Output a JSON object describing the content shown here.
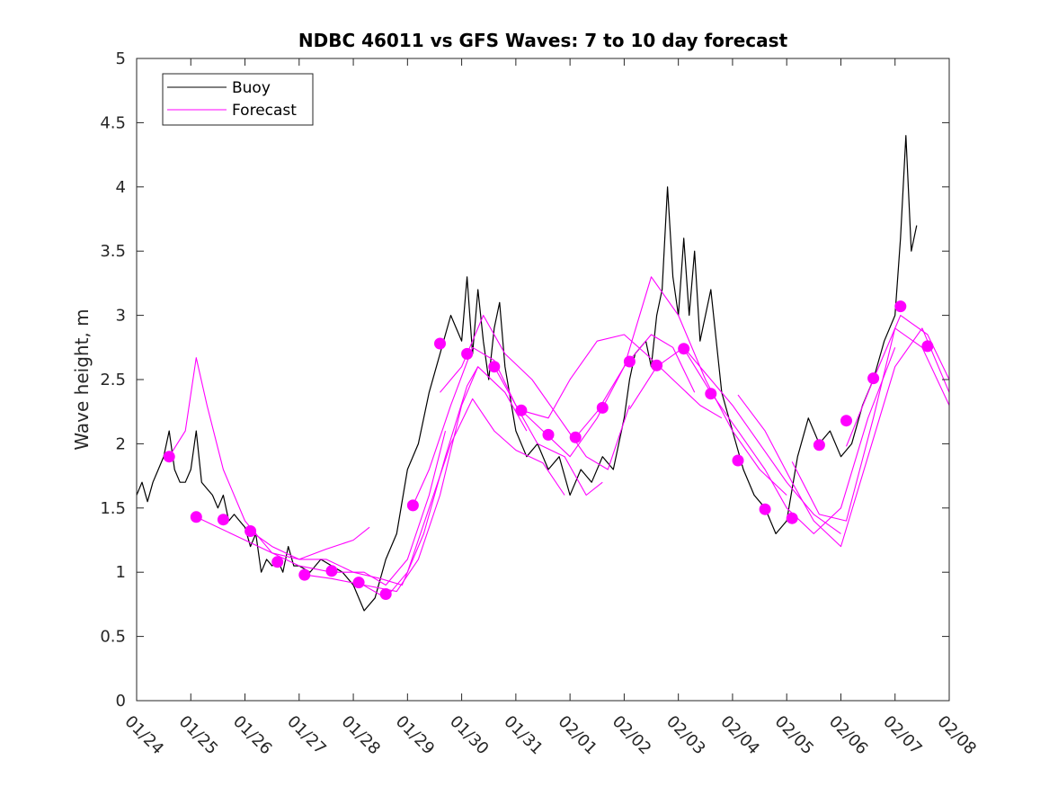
{
  "chart_data": {
    "type": "line",
    "title": "NDBC 46011 vs GFS Waves: 7 to 10 day forecast",
    "xlabel": "",
    "ylabel": "Wave height, m",
    "xlim": [
      0,
      15
    ],
    "ylim": [
      0,
      5
    ],
    "x_tick_values": [
      0,
      1,
      2,
      3,
      4,
      5,
      6,
      7,
      8,
      9,
      10,
      11,
      12,
      13,
      14,
      15
    ],
    "x_tick_labels": [
      "01/24",
      "01/25",
      "01/26",
      "01/27",
      "01/28",
      "01/29",
      "01/30",
      "01/31",
      "02/01",
      "02/02",
      "02/03",
      "02/04",
      "02/05",
      "02/06",
      "02/07",
      "02/08"
    ],
    "y_tick_values": [
      0,
      0.5,
      1,
      1.5,
      2,
      2.5,
      3,
      3.5,
      4,
      4.5,
      5
    ],
    "y_tick_labels": [
      "0",
      "0.5",
      "1",
      "1.5",
      "2",
      "2.5",
      "3",
      "3.5",
      "4",
      "4.5",
      "5"
    ],
    "legend": {
      "position": "top-left",
      "entries": [
        {
          "label": "Buoy",
          "color": "#000000"
        },
        {
          "label": "Forecast",
          "color": "#ff00ff"
        }
      ]
    },
    "colors": {
      "buoy": "#000000",
      "forecast": "#ff00ff"
    },
    "series": [
      {
        "name": "Buoy",
        "x": [
          0,
          0.1,
          0.2,
          0.3,
          0.4,
          0.5,
          0.6,
          0.7,
          0.8,
          0.9,
          1.0,
          1.1,
          1.2,
          1.3,
          1.4,
          1.5,
          1.6,
          1.7,
          1.8,
          1.9,
          2.0,
          2.1,
          2.2,
          2.3,
          2.4,
          2.5,
          2.6,
          2.7,
          2.8,
          2.9,
          3.0,
          3.2,
          3.4,
          3.6,
          3.8,
          4.0,
          4.2,
          4.4,
          4.6,
          4.8,
          5.0,
          5.2,
          5.4,
          5.6,
          5.8,
          6.0,
          6.1,
          6.2,
          6.3,
          6.4,
          6.5,
          6.6,
          6.7,
          6.8,
          7.0,
          7.2,
          7.4,
          7.6,
          7.8,
          8.0,
          8.2,
          8.4,
          8.6,
          8.8,
          9.0,
          9.1,
          9.2,
          9.4,
          9.5,
          9.6,
          9.7,
          9.8,
          9.9,
          10.0,
          10.1,
          10.2,
          10.3,
          10.4,
          10.6,
          10.8,
          11.0,
          11.2,
          11.4,
          11.6,
          11.8,
          12.0,
          12.2,
          12.4,
          12.6,
          12.8,
          13.0,
          13.2,
          13.4,
          13.6,
          13.8,
          14.0,
          14.1,
          14.2,
          14.3,
          14.4
        ],
        "values": [
          1.6,
          1.7,
          1.55,
          1.7,
          1.8,
          1.9,
          2.1,
          1.8,
          1.7,
          1.7,
          1.8,
          2.1,
          1.7,
          1.65,
          1.6,
          1.5,
          1.6,
          1.4,
          1.45,
          1.4,
          1.35,
          1.2,
          1.3,
          1.0,
          1.1,
          1.05,
          1.1,
          1.0,
          1.2,
          1.05,
          1.05,
          1.0,
          1.1,
          1.05,
          1.0,
          0.9,
          0.7,
          0.8,
          1.1,
          1.3,
          1.8,
          2.0,
          2.4,
          2.7,
          3.0,
          2.8,
          3.3,
          2.7,
          3.2,
          2.8,
          2.5,
          2.9,
          3.1,
          2.6,
          2.1,
          1.9,
          2.0,
          1.8,
          1.9,
          1.6,
          1.8,
          1.7,
          1.9,
          1.8,
          2.2,
          2.5,
          2.7,
          2.8,
          2.6,
          3.0,
          3.2,
          4.0,
          3.3,
          3.0,
          3.6,
          3.0,
          3.5,
          2.8,
          3.2,
          2.4,
          2.1,
          1.8,
          1.6,
          1.5,
          1.3,
          1.4,
          1.9,
          2.2,
          2.0,
          2.1,
          1.9,
          2.0,
          2.3,
          2.5,
          2.8,
          3.0,
          3.6,
          4.4,
          3.5,
          3.7
        ]
      },
      {
        "name": "Forecast",
        "x": [
          0.6,
          0.9,
          1.1,
          1.3,
          1.6,
          2.0,
          2.5,
          3.0,
          3.5,
          4.0,
          4.3
        ],
        "values": [
          1.9,
          2.1,
          2.67,
          2.3,
          1.8,
          1.4,
          1.15,
          1.1,
          1.18,
          1.25,
          1.35
        ]
      },
      {
        "name": "Forecast",
        "x": [
          1.1,
          1.5,
          2.0,
          2.5,
          3.0,
          3.6,
          4.2,
          4.6,
          5.0,
          5.4,
          5.7
        ],
        "values": [
          1.43,
          1.35,
          1.25,
          1.15,
          1.05,
          1.0,
          1.0,
          0.9,
          1.1,
          1.6,
          2.1
        ]
      },
      {
        "name": "Forecast",
        "x": [
          2.1,
          2.5,
          3.0,
          3.5,
          4.0,
          4.5,
          4.9,
          5.3,
          5.7,
          6.1,
          6.3
        ],
        "values": [
          1.32,
          1.2,
          1.1,
          1.1,
          1.0,
          0.95,
          0.9,
          1.3,
          1.9,
          2.45,
          2.6
        ]
      },
      {
        "name": "Forecast",
        "x": [
          3.1,
          3.6,
          4.2,
          4.8,
          5.2,
          5.6,
          6.0,
          6.3,
          6.8,
          7.2
        ],
        "values": [
          0.98,
          0.95,
          0.9,
          0.85,
          1.1,
          1.6,
          2.3,
          2.6,
          2.4,
          2.1
        ]
      },
      {
        "name": "Forecast",
        "x": [
          4.1,
          4.6,
          5.0,
          5.4,
          5.8,
          6.2,
          6.6,
          7.0,
          7.5,
          7.9
        ],
        "values": [
          0.92,
          0.8,
          1.0,
          1.5,
          2.0,
          2.35,
          2.1,
          1.95,
          1.85,
          1.6
        ]
      },
      {
        "name": "Forecast",
        "x": [
          5.1,
          5.4,
          5.8,
          6.2,
          6.6,
          7.0,
          7.4,
          7.9,
          8.3,
          8.6
        ],
        "values": [
          1.52,
          1.8,
          2.3,
          2.75,
          2.65,
          2.3,
          2.0,
          1.9,
          1.6,
          1.7
        ]
      },
      {
        "name": "Forecast",
        "x": [
          5.6,
          6.0,
          6.4,
          6.8,
          7.3,
          7.8,
          8.3,
          8.7,
          9.1
        ],
        "values": [
          2.4,
          2.6,
          3.0,
          2.7,
          2.5,
          2.2,
          1.9,
          1.8,
          2.3
        ]
      },
      {
        "name": "Forecast",
        "x": [
          6.6,
          7.0,
          7.5,
          8.0,
          8.5,
          9.0,
          9.5,
          9.9,
          10.3
        ],
        "values": [
          2.6,
          2.3,
          2.1,
          1.9,
          2.2,
          2.6,
          2.85,
          2.75,
          2.4
        ]
      },
      {
        "name": "Forecast",
        "x": [
          7.1,
          7.6,
          8.0,
          8.5,
          9.0,
          9.4,
          9.9,
          10.4,
          10.8
        ],
        "values": [
          2.26,
          2.2,
          2.5,
          2.8,
          2.85,
          2.7,
          2.5,
          2.3,
          2.2
        ]
      },
      {
        "name": "Forecast",
        "x": [
          8.1,
          8.5,
          9.0,
          9.5,
          10.0,
          10.5,
          11.0,
          11.5,
          12.0
        ],
        "values": [
          2.05,
          2.25,
          2.6,
          3.3,
          3.0,
          2.5,
          2.1,
          1.8,
          1.6
        ]
      },
      {
        "name": "Forecast",
        "x": [
          9.1,
          9.6,
          10.1,
          10.6,
          11.0,
          11.5,
          12.0,
          12.5,
          13.0
        ],
        "values": [
          2.27,
          2.6,
          2.75,
          2.5,
          2.3,
          2.0,
          1.7,
          1.45,
          1.3
        ]
      },
      {
        "name": "Forecast",
        "x": [
          10.1,
          10.6,
          11.1,
          11.6,
          12.0,
          12.5,
          13.0,
          13.5,
          14.0
        ],
        "values": [
          2.74,
          2.4,
          2.1,
          1.8,
          1.5,
          1.3,
          1.5,
          2.2,
          2.75
        ]
      },
      {
        "name": "Forecast",
        "x": [
          11.1,
          11.6,
          12.1,
          12.5,
          13.0,
          13.5,
          14.0,
          14.5,
          15.0
        ],
        "values": [
          2.38,
          2.1,
          1.7,
          1.4,
          1.2,
          1.9,
          2.6,
          2.9,
          2.4
        ]
      },
      {
        "name": "Forecast",
        "x": [
          12.1,
          12.6,
          13.1,
          13.6,
          14.0,
          14.5,
          15.0
        ],
        "values": [
          1.86,
          1.45,
          1.4,
          2.2,
          2.9,
          2.75,
          2.3
        ]
      },
      {
        "name": "Forecast",
        "x": [
          13.1,
          13.6,
          14.1,
          14.6,
          15.0
        ],
        "values": [
          1.98,
          2.5,
          3.0,
          2.85,
          2.5
        ]
      }
    ],
    "forecast_markers": {
      "name": "Forecast markers",
      "x": [
        0.6,
        1.1,
        1.6,
        2.1,
        2.6,
        3.1,
        3.6,
        4.1,
        4.6,
        5.1,
        5.6,
        6.1,
        6.6,
        7.1,
        7.6,
        8.1,
        8.6,
        9.1,
        9.6,
        10.1,
        10.6,
        11.1,
        11.6,
        12.1,
        12.6,
        13.1,
        13.6,
        14.1,
        14.6
      ],
      "values": [
        1.9,
        1.43,
        1.41,
        1.32,
        1.08,
        0.98,
        1.01,
        0.92,
        0.83,
        1.52,
        2.78,
        2.7,
        2.6,
        2.26,
        2.07,
        2.05,
        2.28,
        2.64,
        2.61,
        2.74,
        2.39,
        1.87,
        1.49,
        1.42,
        1.99,
        2.18,
        2.51,
        3.07,
        2.76
      ]
    }
  }
}
